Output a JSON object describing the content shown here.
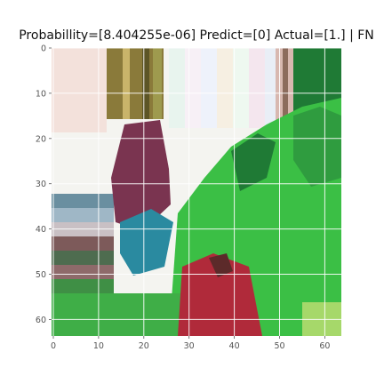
{
  "chart_data": {
    "type": "heatmap",
    "title": "Probabillity=[8.404255e-06] Predict=[0] Actual=[1.] | FN",
    "xlim": [
      0,
      63
    ],
    "ylim": [
      63,
      0
    ],
    "xticks": [
      0,
      10,
      20,
      30,
      40,
      50,
      60
    ],
    "yticks": [
      0,
      10,
      20,
      30,
      40,
      50,
      60
    ],
    "grid": true,
    "image_content": "64x64 pixel image shown with inverted y axis",
    "colors": {
      "grid": "#ffffff",
      "tick_text": "#555555",
      "foliage_dark": "#1f7a35",
      "foliage_bright": "#3bbf45",
      "sky_pink": "#f3dcd6",
      "sky_white": "#f4f4f0",
      "trunk_olive": "#8a7a3a",
      "body_maroon": "#7a3450",
      "body_teal": "#2a8aa0",
      "accent_red": "#b02a3a"
    }
  }
}
